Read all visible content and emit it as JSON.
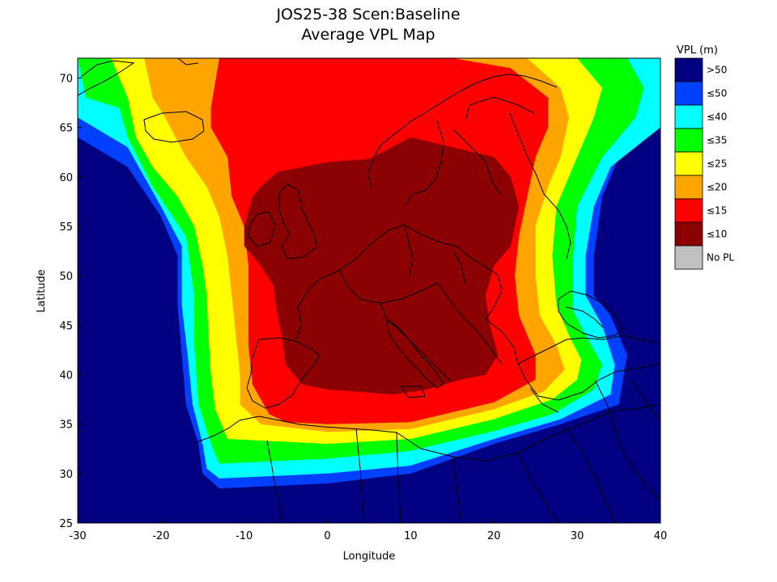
{
  "title": {
    "line1": "JOS25-38 Scen:Baseline",
    "line2": "Average VPL Map"
  },
  "chart_data": {
    "type": "heatmap",
    "xlabel": "Longitude",
    "ylabel": "Latitude",
    "xlim": [
      -30,
      40
    ],
    "ylim": [
      25,
      72
    ],
    "x_ticks": [
      -30,
      -20,
      -10,
      0,
      10,
      20,
      30,
      40
    ],
    "y_ticks": [
      25,
      30,
      35,
      40,
      45,
      50,
      55,
      60,
      65,
      70
    ],
    "legend_title": "VPL (m)",
    "legend_placement": "right",
    "legend": [
      {
        "label": ">50",
        "color": "#000080"
      },
      {
        "label": "≤50",
        "color": "#0040ff"
      },
      {
        "label": "≤40",
        "color": "#00ffff"
      },
      {
        "label": "≤35",
        "color": "#00ff00"
      },
      {
        "label": "≤25",
        "color": "#ffff00"
      },
      {
        "label": "≤20",
        "color": "#ffa500"
      },
      {
        "label": "≤15",
        "color": "#ff0000"
      },
      {
        "label": "≤10",
        "color": "#8b0000"
      },
      {
        "label": "No PL",
        "color": "#c0c0c0"
      }
    ],
    "contours": [
      {
        "level": "≤50",
        "color": "#0040ff",
        "points": [
          [
            -30,
            64
          ],
          [
            -24,
            61
          ],
          [
            -20,
            56
          ],
          [
            -18,
            52
          ],
          [
            -18,
            47
          ],
          [
            -17.5,
            42
          ],
          [
            -17,
            37
          ],
          [
            -15.5,
            33
          ],
          [
            -15,
            30
          ],
          [
            -13,
            28.5
          ],
          [
            0,
            29
          ],
          [
            10,
            30
          ],
          [
            20,
            33
          ],
          [
            28,
            35
          ],
          [
            35,
            37
          ],
          [
            36,
            42
          ],
          [
            34,
            46
          ],
          [
            32,
            48
          ],
          [
            32,
            52
          ],
          [
            33,
            58
          ],
          [
            35,
            62
          ],
          [
            40,
            66
          ],
          [
            40,
            72
          ],
          [
            -30,
            72
          ]
        ]
      },
      {
        "level": "≤40",
        "color": "#00ffff",
        "points": [
          [
            -30,
            66
          ],
          [
            -24,
            63
          ],
          [
            -20,
            57
          ],
          [
            -17.5,
            53
          ],
          [
            -17.5,
            47
          ],
          [
            -16.8,
            42
          ],
          [
            -16.2,
            37
          ],
          [
            -15,
            33
          ],
          [
            -14.5,
            30.5
          ],
          [
            -13,
            29.5
          ],
          [
            0,
            30
          ],
          [
            10,
            30.8
          ],
          [
            20,
            33.5
          ],
          [
            28,
            35.5
          ],
          [
            34,
            38
          ],
          [
            34.5,
            41
          ],
          [
            33,
            45
          ],
          [
            31,
            48
          ],
          [
            31,
            52
          ],
          [
            32,
            57
          ],
          [
            34,
            61
          ],
          [
            40,
            65
          ],
          [
            40,
            72
          ],
          [
            -30,
            72
          ]
        ]
      },
      {
        "level": "≤35",
        "color": "#00ff00",
        "points": [
          [
            -29,
            68
          ],
          [
            -25,
            67
          ],
          [
            -24,
            64
          ],
          [
            -21,
            59
          ],
          [
            -17,
            54
          ],
          [
            -16,
            48
          ],
          [
            -16,
            43
          ],
          [
            -15.5,
            37
          ],
          [
            -14,
            33
          ],
          [
            -13,
            31
          ],
          [
            0,
            31.5
          ],
          [
            10,
            32.3
          ],
          [
            20,
            34.3
          ],
          [
            27,
            36
          ],
          [
            32,
            38.5
          ],
          [
            33,
            41
          ],
          [
            31,
            44
          ],
          [
            29.5,
            46.5
          ],
          [
            29.5,
            52
          ],
          [
            30,
            57
          ],
          [
            33,
            62
          ],
          [
            37,
            66
          ],
          [
            38,
            69
          ],
          [
            36,
            72
          ],
          [
            -30,
            72
          ]
        ]
      },
      {
        "level": "≤25",
        "color": "#ffff00",
        "points": [
          [
            -26,
            72
          ],
          [
            -24,
            68
          ],
          [
            -23,
            64
          ],
          [
            -21,
            61
          ],
          [
            -18,
            58
          ],
          [
            -16,
            55
          ],
          [
            -15,
            51
          ],
          [
            -14.5,
            48
          ],
          [
            -14.3,
            44
          ],
          [
            -14,
            40
          ],
          [
            -13.5,
            36.5
          ],
          [
            -12,
            33.5
          ],
          [
            0,
            33
          ],
          [
            10,
            33.5
          ],
          [
            20,
            35.5
          ],
          [
            27,
            37.5
          ],
          [
            30,
            39.5
          ],
          [
            30.5,
            41.5
          ],
          [
            29,
            44
          ],
          [
            27.5,
            47
          ],
          [
            27,
            52
          ],
          [
            27.5,
            57
          ],
          [
            30,
            62
          ],
          [
            32,
            66
          ],
          [
            33,
            69
          ],
          [
            30,
            72
          ]
        ]
      },
      {
        "level": "≤20",
        "color": "#ffa500",
        "points": [
          [
            -22,
            72
          ],
          [
            -21,
            68
          ],
          [
            -19.5,
            66
          ],
          [
            -17,
            62
          ],
          [
            -14.5,
            59
          ],
          [
            -13,
            56
          ],
          [
            -12,
            52
          ],
          [
            -11.5,
            48
          ],
          [
            -11,
            44
          ],
          [
            -10.5,
            40
          ],
          [
            -10.5,
            37
          ],
          [
            -8,
            35
          ],
          [
            0,
            34.2
          ],
          [
            10,
            34.5
          ],
          [
            20,
            36.5
          ],
          [
            26,
            38.3
          ],
          [
            28.5,
            40.5
          ],
          [
            27.5,
            43
          ],
          [
            25.5,
            46
          ],
          [
            25,
            50
          ],
          [
            25,
            55
          ],
          [
            26.5,
            59
          ],
          [
            28,
            62
          ],
          [
            29,
            66
          ],
          [
            28,
            69
          ],
          [
            24,
            72
          ]
        ]
      },
      {
        "level": "≤15",
        "color": "#ff0000",
        "points": [
          [
            -13,
            72
          ],
          [
            -14,
            67
          ],
          [
            -14,
            65
          ],
          [
            -12,
            62
          ],
          [
            -11.5,
            58
          ],
          [
            -10,
            55
          ],
          [
            -9.5,
            51
          ],
          [
            -9.5,
            47
          ],
          [
            -9.5,
            43
          ],
          [
            -9,
            39
          ],
          [
            -7,
            36
          ],
          [
            -5,
            35.2
          ],
          [
            0,
            35
          ],
          [
            10,
            35.2
          ],
          [
            20,
            37.2
          ],
          [
            25,
            39.5
          ],
          [
            25,
            42
          ],
          [
            24,
            44
          ],
          [
            23,
            46
          ],
          [
            22.5,
            50
          ],
          [
            23,
            54
          ],
          [
            24,
            58
          ],
          [
            25,
            62
          ],
          [
            26.5,
            65
          ],
          [
            26.5,
            68
          ],
          [
            22,
            71
          ],
          [
            15,
            72
          ]
        ]
      },
      {
        "level": "≤10",
        "color": "#8b0000",
        "points": [
          [
            -8,
            59
          ],
          [
            -6,
            60.5
          ],
          [
            0,
            61.5
          ],
          [
            5,
            61.8
          ],
          [
            10,
            64
          ],
          [
            15,
            63
          ],
          [
            20,
            62
          ],
          [
            22,
            60
          ],
          [
            23,
            57
          ],
          [
            22,
            53
          ],
          [
            20,
            51
          ],
          [
            19,
            48
          ],
          [
            19.5,
            45
          ],
          [
            20.5,
            42
          ],
          [
            19,
            40
          ],
          [
            16,
            39.5
          ],
          [
            12,
            38.5
          ],
          [
            8,
            38
          ],
          [
            0,
            38.5
          ],
          [
            -3,
            39
          ],
          [
            -5,
            41
          ],
          [
            -5.5,
            44
          ],
          [
            -6,
            46
          ],
          [
            -6.5,
            49
          ],
          [
            -8,
            51
          ],
          [
            -10,
            53
          ],
          [
            -10,
            55
          ],
          [
            -9,
            58
          ]
        ]
      }
    ]
  }
}
